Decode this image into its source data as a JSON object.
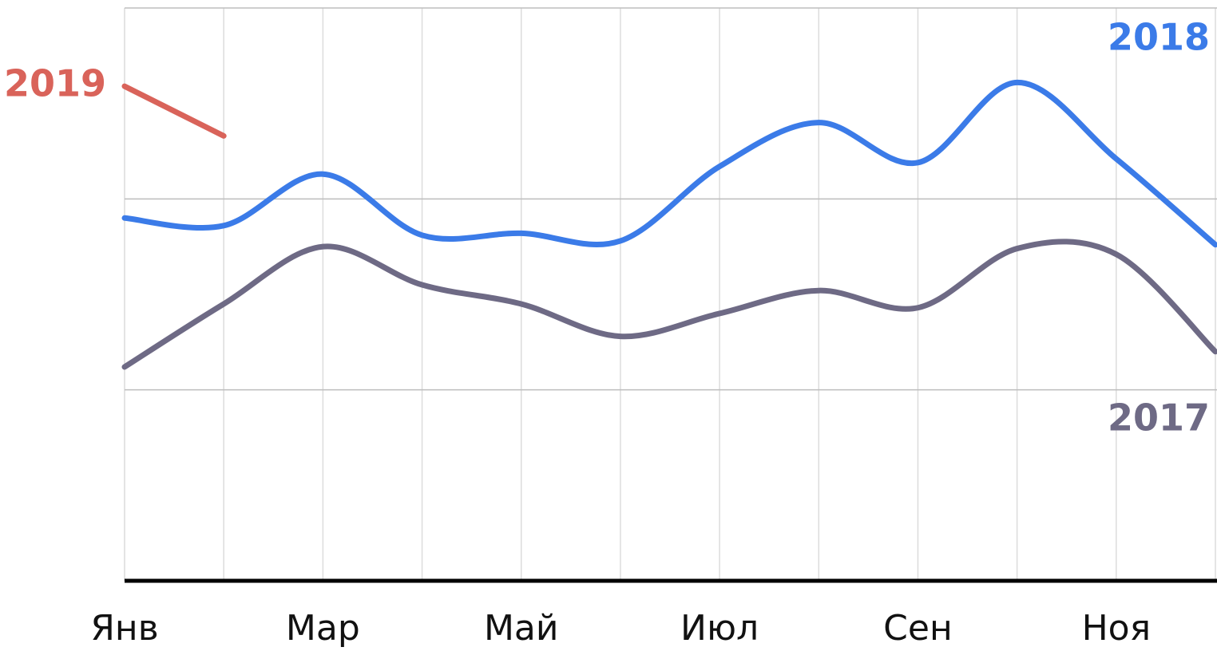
{
  "chart_data": {
    "type": "line",
    "categories": [
      "Янв",
      null,
      "Мар",
      null,
      "Май",
      null,
      "Июл",
      null,
      "Сен",
      null,
      "Ноя",
      null
    ],
    "series": [
      {
        "name": "2018",
        "color": "#3b7be8",
        "values": [
          1.9,
          1.86,
          2.13,
          1.81,
          1.82,
          1.78,
          2.17,
          2.4,
          2.19,
          2.61,
          2.21,
          1.76
        ]
      },
      {
        "name": "2017",
        "color": "#6e6a85",
        "values": [
          1.12,
          1.45,
          1.75,
          1.55,
          1.45,
          1.28,
          1.4,
          1.52,
          1.43,
          1.74,
          1.71,
          1.2
        ]
      },
      {
        "name": "2019",
        "color": "#d9635a",
        "values": [
          2.59,
          2.33,
          null,
          null,
          null,
          null,
          null,
          null,
          null,
          null,
          null,
          null
        ]
      }
    ],
    "ylim": [
      0,
      3
    ],
    "yticks": [
      0,
      1,
      2,
      3
    ],
    "grid": true
  }
}
